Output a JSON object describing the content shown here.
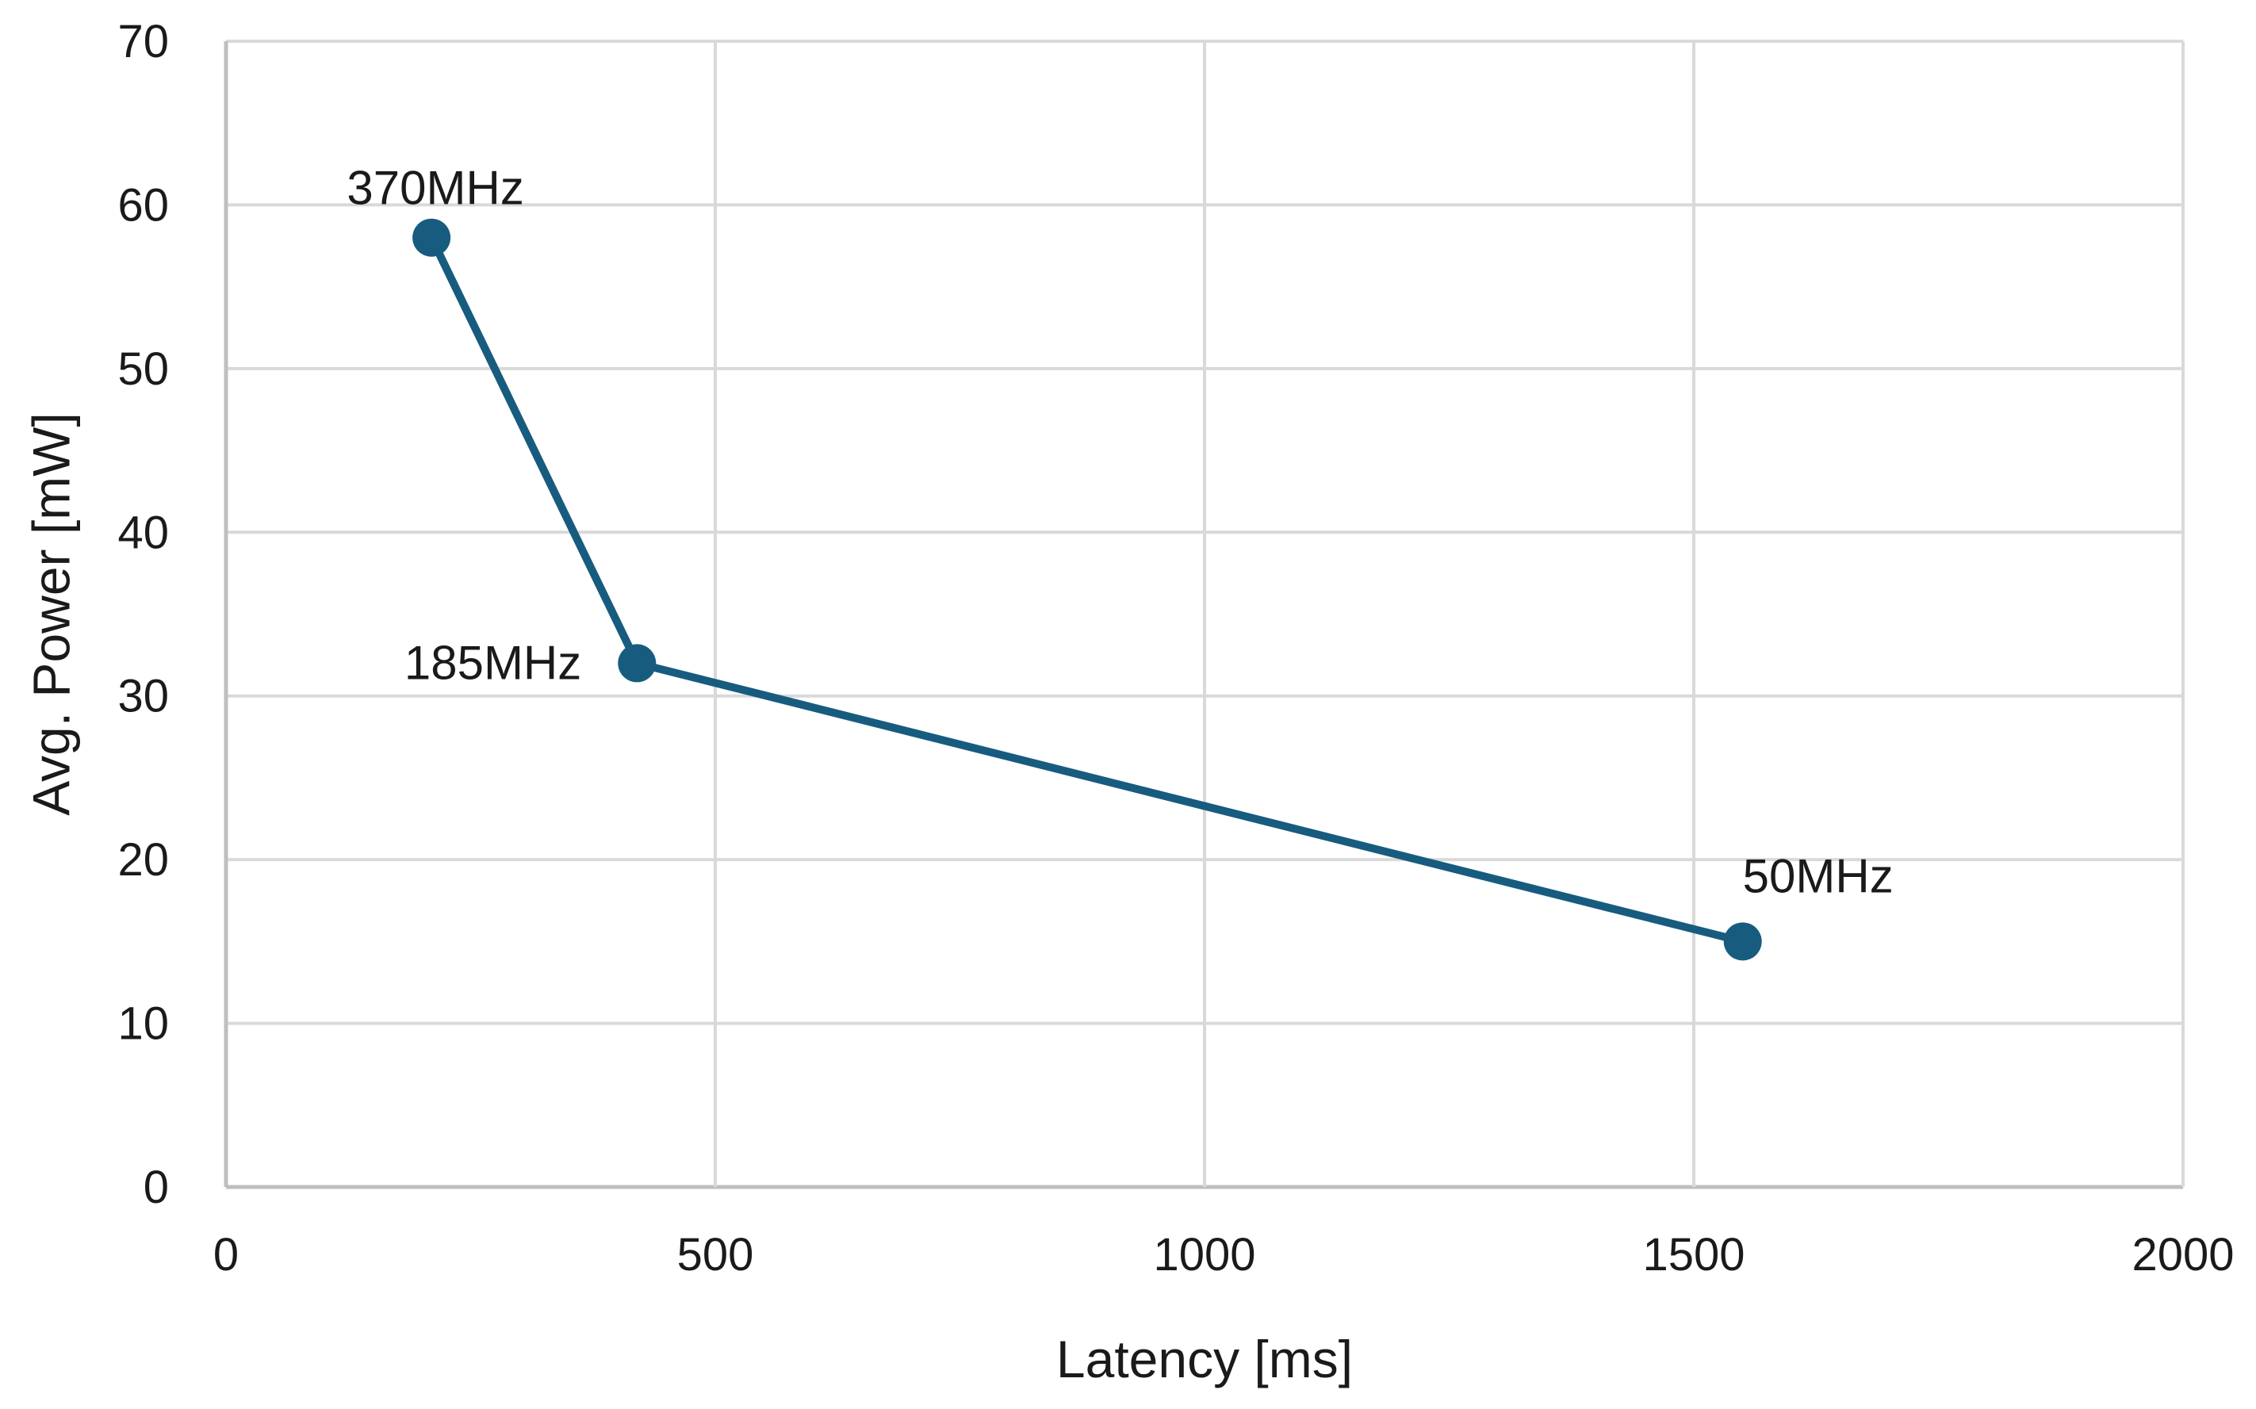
{
  "chart_data": {
    "type": "line",
    "title": "",
    "xlabel": "Latency [ms]",
    "ylabel": "Avg. Power [mW]",
    "xlim": [
      0,
      2000
    ],
    "ylim": [
      0,
      70
    ],
    "xticks": [
      0,
      500,
      1000,
      1500,
      2000
    ],
    "yticks": [
      0,
      10,
      20,
      30,
      40,
      50,
      60,
      70
    ],
    "grid": true,
    "legend": "none",
    "series": [
      {
        "color": "#175c7f",
        "x": [
          210,
          420,
          1550
        ],
        "y": [
          58,
          32,
          15
        ],
        "labels": [
          "370MHz",
          "185MHz",
          "50MHz"
        ]
      }
    ]
  }
}
